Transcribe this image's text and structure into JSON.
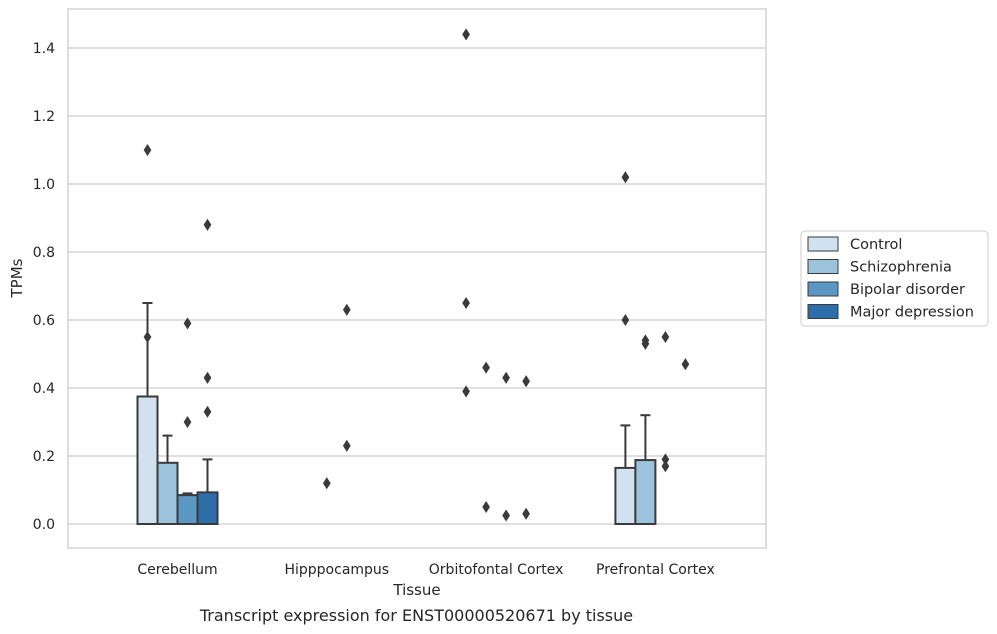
{
  "caption": "Transcript expression for ENST00000520671 by tissue",
  "chart_data": {
    "type": "bar",
    "xlabel": "Tissue",
    "ylabel": "TPMs",
    "ylim": [
      -0.07,
      1.51
    ],
    "yticks": [
      "0.0",
      "0.2",
      "0.4",
      "0.6",
      "0.8",
      "1.0",
      "1.2",
      "1.4"
    ],
    "grid": true,
    "legend_position": "right",
    "categories": [
      "Cerebellum",
      "Hipppocampus",
      "Orbitofontal Cortex",
      "Prefrontal Cortex"
    ],
    "series": [
      {
        "name": "Control",
        "color": "#d0e1f0",
        "values": [
          0.375,
          0.0,
          0.0,
          0.165
        ],
        "errors": [
          0.65,
          0.0,
          0.0,
          0.29
        ],
        "outliers": [
          [
            1.1,
            0.55
          ],
          [],
          [
            1.44,
            0.65,
            0.39
          ],
          [
            1.02,
            0.6
          ]
        ]
      },
      {
        "name": "Schizophrenia",
        "color": "#9cc3dc",
        "values": [
          0.18,
          0.0,
          0.0,
          0.188
        ],
        "errors": [
          0.26,
          0.0,
          0.0,
          0.32
        ],
        "outliers": [
          [],
          [
            0.12
          ],
          [
            0.46,
            0.05
          ],
          [
            0.53,
            0.54
          ]
        ]
      },
      {
        "name": "Bipolar disorder",
        "color": "#5b97c3",
        "values": [
          0.085,
          0.0,
          0.0,
          0.0
        ],
        "errors": [
          0.09,
          0.0,
          0.0,
          0.0
        ],
        "outliers": [
          [
            0.59,
            0.3
          ],
          [
            0.63,
            0.23
          ],
          [
            0.43,
            0.025
          ],
          [
            0.55,
            0.19,
            0.17
          ]
        ]
      },
      {
        "name": "Major depression",
        "color": "#2d6da9",
        "values": [
          0.093,
          0.0,
          0.0,
          0.0
        ],
        "errors": [
          0.19,
          0.0,
          0.0,
          0.0
        ],
        "outliers": [
          [
            0.88,
            0.43,
            0.33
          ],
          [],
          [
            0.42,
            0.03
          ],
          [
            0.47
          ]
        ]
      }
    ]
  }
}
